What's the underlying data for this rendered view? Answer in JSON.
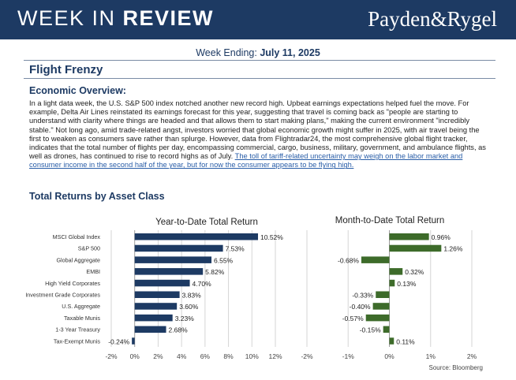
{
  "banner": {
    "title_regular": "WEEK IN ",
    "title_bold": "REVIEW",
    "brand": "Payden&Rygel",
    "background": "#1d3a63"
  },
  "week_ending": {
    "label": "Week Ending: ",
    "date": "July 11, 2025"
  },
  "headline": "Flight Frenzy",
  "overview": {
    "heading": "Economic Overview:",
    "body": "In a light data week, the U.S. S&P 500 index notched another new record high. Upbeat earnings expectations helped fuel the move. For example, Delta Air Lines reinstated its earnings forecast for this year, suggesting that travel is coming back as \"people are starting to understand with clarity where things are headed and that allows them to start making plans,\" making the current environment \"incredibly stable.\" Not long ago, amid trade-related angst, investors worried that global economic growth might suffer in 2025, with air travel being the first to weaken as consumers save rather than splurge. However, data from Flightradar24, the most comprehensive global flight tracker, indicates that the total number of flights per day, encompassing commercial, cargo, business, military, government, and ambulance flights, as well as drones, has continued to rise to record highs as of July. ",
    "link": "The toll of tariff-related uncertainty may weigh on the labor market and consumer income in the second half of the year, but for now the consumer appears to be flying high."
  },
  "section_title": "Total Returns by Asset Class",
  "source": "Source: Bloomberg",
  "colors": {
    "ytd_bar": "#1d3a63",
    "mtd_bar": "#3d6b2a"
  },
  "chart_data": [
    {
      "type": "bar",
      "orientation": "horizontal",
      "title": "Year-to-Date Total Return",
      "categories": [
        "MSCI Global Index",
        "S&P 500",
        "Global Aggregate",
        "EMBI",
        "High Yield Corporates",
        "Investment Grade Corporates",
        "U.S. Aggregate",
        "Taxable Munis",
        "1-3 Year Treasury",
        "Tax-Exempt Munis"
      ],
      "values": [
        10.52,
        7.53,
        6.55,
        5.82,
        4.7,
        3.83,
        3.6,
        3.23,
        2.68,
        -0.24
      ],
      "value_labels": [
        "10.52%",
        "7.53%",
        "6.55%",
        "5.82%",
        "4.70%",
        "3.83%",
        "3.60%",
        "3.23%",
        "2.68%",
        "-0.24%"
      ],
      "xlim": [
        -2,
        12
      ],
      "ticks": [
        -2,
        0,
        2,
        4,
        6,
        8,
        10,
        12
      ],
      "tick_labels": [
        "-2%",
        "0%",
        "2%",
        "4%",
        "6%",
        "8%",
        "10%",
        "12%"
      ],
      "grid": "vertical",
      "color": "#1d3a63"
    },
    {
      "type": "bar",
      "orientation": "horizontal",
      "title": "Month-to-Date Total Return",
      "categories": [
        "MSCI Global Index",
        "S&P 500",
        "Global Aggregate",
        "EMBI",
        "High Yield Corporates",
        "Investment Grade Corporates",
        "U.S. Aggregate",
        "Taxable Munis",
        "1-3 Year Treasury",
        "Tax-Exempt Munis"
      ],
      "values": [
        0.96,
        1.26,
        -0.68,
        0.32,
        0.13,
        -0.33,
        -0.4,
        -0.57,
        -0.15,
        0.11
      ],
      "value_labels": [
        "0.96%",
        "1.26%",
        "-0.68%",
        "0.32%",
        "0.13%",
        "-0.33%",
        "-0.40%",
        "-0.57%",
        "-0.15%",
        "0.11%"
      ],
      "xlim": [
        -2,
        2
      ],
      "ticks": [
        -2,
        -1,
        0,
        1,
        2
      ],
      "tick_labels": [
        "-2%",
        "-1%",
        "0%",
        "1%",
        "2%"
      ],
      "grid": "vertical",
      "color": "#3d6b2a"
    }
  ]
}
